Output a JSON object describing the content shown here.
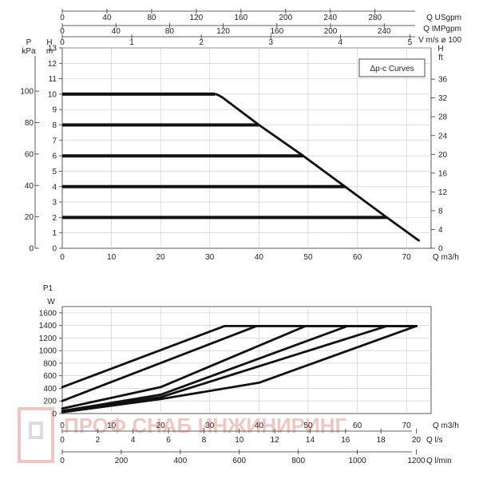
{
  "watermark": {
    "text": "ПРОФ СНАБ ИНЖИНИРИНГ"
  },
  "chart_data": [
    {
      "type": "line",
      "title": "",
      "legend_box": "Δp-c Curves",
      "xlabel": "Q m3/h",
      "x_ticks": [
        0,
        10,
        20,
        30,
        40,
        50,
        60,
        70
      ],
      "xlim": [
        0,
        75
      ],
      "left_axis_H": {
        "unit_label": "H",
        "unit_sub": "m",
        "ticks": [
          0,
          1,
          2,
          3,
          4,
          5,
          6,
          7,
          8,
          9,
          10,
          11,
          12,
          13
        ],
        "ylim": [
          0,
          13
        ]
      },
      "left_axis_P": {
        "unit_label": "P",
        "unit_sub": "kPa",
        "ticks": [
          0,
          20,
          40,
          60,
          80,
          100
        ]
      },
      "right_axis_ft": {
        "unit_label": "H",
        "unit_sub": "ft",
        "ticks": [
          0,
          4,
          8,
          12,
          16,
          20,
          24,
          28,
          32,
          36
        ]
      },
      "top_axes": [
        {
          "label": "Q USgpm",
          "ticks": [
            0,
            40,
            80,
            120,
            160,
            200,
            240,
            280
          ],
          "factor": 4.4029
        },
        {
          "label": "Q IMPgpm",
          "ticks": [
            0,
            40,
            80,
            120,
            160,
            200,
            240
          ],
          "factor": 3.6662
        },
        {
          "label": "V m/s ø 100",
          "ticks": [
            0,
            1,
            2,
            3,
            4,
            5
          ],
          "factor": 0.07074
        }
      ],
      "grid": true,
      "series": [
        {
          "x": [
            0,
            31
          ],
          "y": [
            10,
            10
          ]
        },
        {
          "x": [
            0,
            40
          ],
          "y": [
            8,
            8
          ]
        },
        {
          "x": [
            0,
            49
          ],
          "y": [
            6,
            6
          ]
        },
        {
          "x": [
            0,
            57.5
          ],
          "y": [
            4,
            4
          ]
        },
        {
          "x": [
            0,
            66
          ],
          "y": [
            2,
            2
          ]
        },
        {
          "x": [
            31,
            31.5,
            32.5,
            40,
            49,
            57.5,
            66,
            72.5
          ],
          "y": [
            10,
            9.98,
            9.8,
            8,
            6,
            4,
            2,
            0.5
          ]
        }
      ]
    },
    {
      "type": "line",
      "title": "",
      "ylabel": "P1",
      "yunit": "W",
      "y_ticks": [
        0,
        200,
        400,
        600,
        800,
        1000,
        1200,
        1400,
        1600
      ],
      "ylim": [
        0,
        1700
      ],
      "xlabel": "Q m3/h",
      "x_ticks": [
        0,
        10,
        20,
        30,
        40,
        50,
        60,
        70
      ],
      "xlim": [
        0,
        75
      ],
      "bottom_axes": [
        {
          "label": "Q l/s",
          "ticks": [
            0,
            2,
            4,
            6,
            8,
            10,
            12,
            14,
            16,
            18,
            20
          ],
          "factor": 0.27778
        },
        {
          "label": "Q l/min",
          "ticks": [
            0,
            200,
            400,
            600,
            800,
            1000,
            1200
          ],
          "factor": 16.667
        }
      ],
      "grid": true,
      "series": [
        {
          "x": [
            0,
            33,
            72
          ],
          "y": [
            420,
            1390,
            1390
          ]
        },
        {
          "x": [
            0,
            39.5,
            72
          ],
          "y": [
            200,
            1390,
            1390
          ]
        },
        {
          "x": [
            0,
            20,
            49.5,
            72
          ],
          "y": [
            80,
            420,
            1390,
            1390
          ]
        },
        {
          "x": [
            0,
            20,
            58,
            72
          ],
          "y": [
            40,
            300,
            1390,
            1390
          ]
        },
        {
          "x": [
            0,
            20,
            66,
            72
          ],
          "y": [
            30,
            260,
            1390,
            1390
          ]
        },
        {
          "x": [
            0,
            20,
            40,
            72
          ],
          "y": [
            20,
            230,
            490,
            1390
          ]
        }
      ]
    }
  ]
}
